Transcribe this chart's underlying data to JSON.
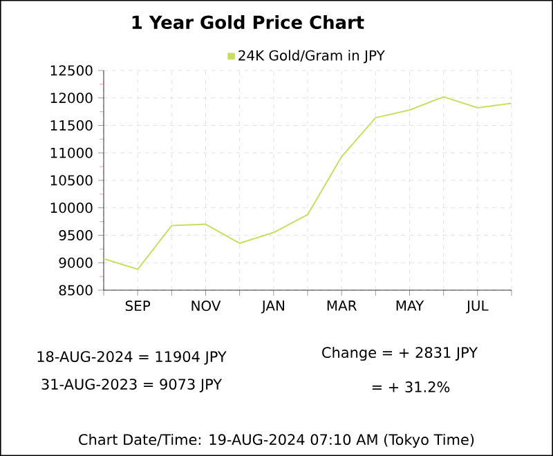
{
  "chart_data": {
    "type": "line",
    "title": "1 Year Gold Price Chart",
    "categories": [
      null,
      "SEP",
      null,
      "NOV",
      null,
      "JAN",
      null,
      "MAR",
      null,
      "MAY",
      null,
      "JUL",
      null
    ],
    "series": [
      {
        "name": "24K Gold/Gram in JPY",
        "color": "#c4e05e",
        "values": [
          9073,
          8880,
          9675,
          9700,
          9355,
          9550,
          9875,
          10930,
          11640,
          11780,
          12020,
          11820,
          11904
        ]
      }
    ],
    "ylim": [
      8500,
      12500
    ],
    "yticks": [
      8500,
      9000,
      9500,
      10000,
      10500,
      11000,
      11500,
      12000,
      12500
    ],
    "grid": true,
    "legend": "top",
    "marker": "none",
    "line_style": "solid",
    "annotations": [
      "18-AUG-2024 = 11904 JPY",
      "31-AUG-2023 = 9073 JPY",
      "Change = + 2831 JPY",
      "= + 31.2%",
      "Chart Date/Time: 19-AUG-2024 07:10 AM (Tokyo Time)"
    ]
  }
}
